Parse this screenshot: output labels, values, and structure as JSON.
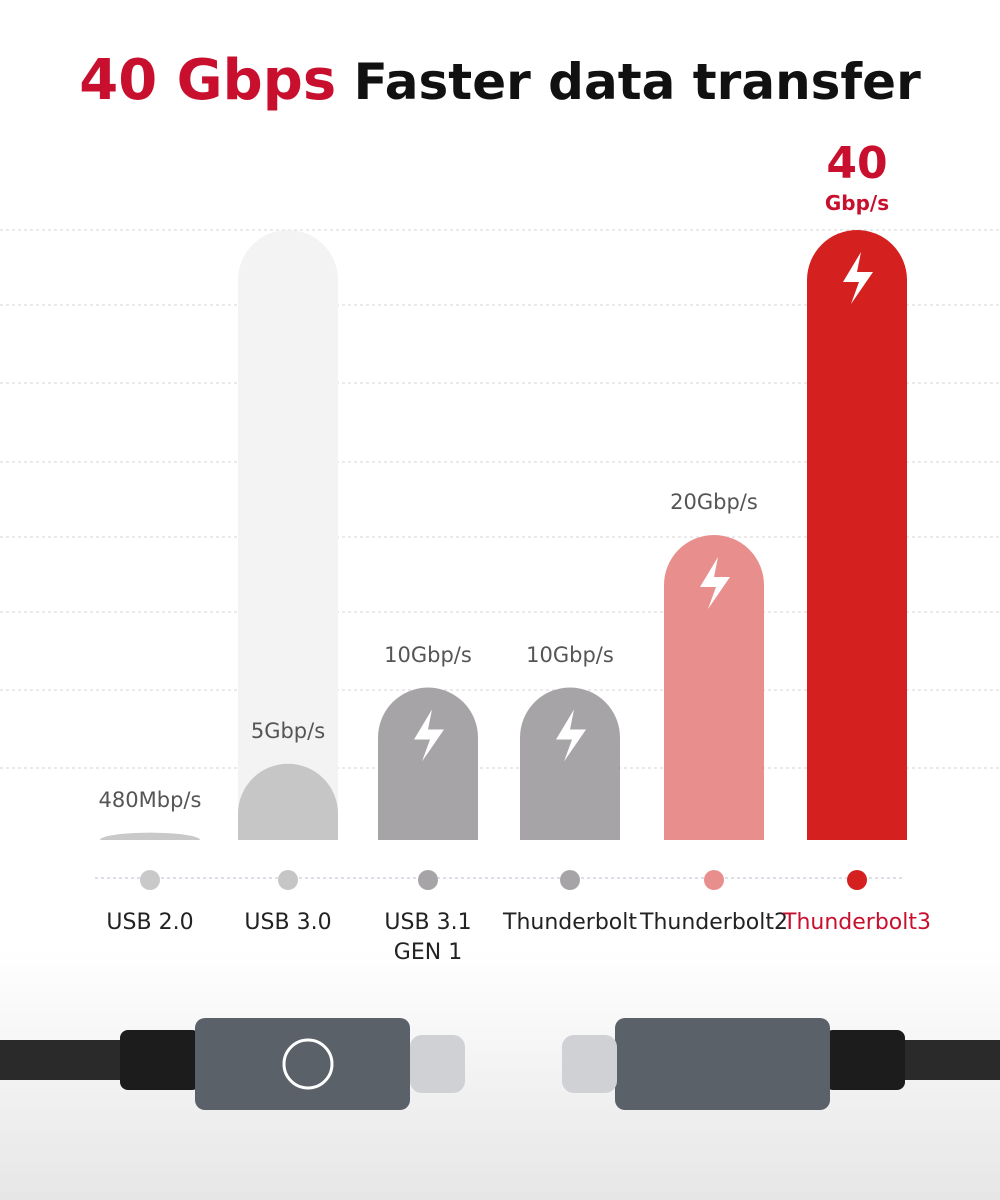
{
  "chart_data": {
    "type": "bar",
    "title_highlight": "40 Gbps",
    "title": "Faster data transfer",
    "categories": [
      "USB 2.0",
      "USB 3.0",
      "USB 3.1\nGEN 1",
      "Thunderbolt",
      "Thunderbolt2",
      "Thunderbolt3"
    ],
    "values": [
      0.48,
      5,
      10,
      10,
      20,
      40
    ],
    "value_labels": [
      "480Mbp/s",
      "5Gbp/s",
      "10Gbp/s",
      "10Gbp/s",
      "20Gbp/s",
      "40"
    ],
    "highlight_unit": "Gbp/s",
    "colors": [
      "#c9c9c9",
      "#c6c6c6",
      "#a6a4a7",
      "#a6a4a7",
      "#e88f8d",
      "#d4201f"
    ],
    "ylim": [
      0,
      40
    ]
  }
}
